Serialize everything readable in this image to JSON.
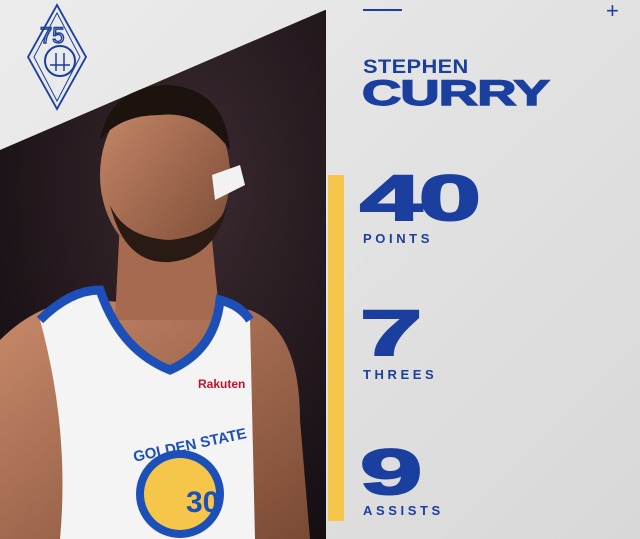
{
  "player": {
    "first_name": "STEPHEN",
    "last_name": "CURRY"
  },
  "stats": [
    {
      "value": "40",
      "label": "POINTS"
    },
    {
      "value": "7",
      "label": "THREES"
    },
    {
      "value": "9",
      "label": "ASSISTS"
    }
  ],
  "logo": {
    "text": "75",
    "icon": "warriors-75th-anniversary-logo"
  },
  "jersey": {
    "team": "GOLDEN STATE",
    "number": "30",
    "sponsor": "Rakuten"
  },
  "colors": {
    "blue": "#1a3f9e",
    "yellow": "#f6c64a",
    "background": "#e4e4e4"
  }
}
